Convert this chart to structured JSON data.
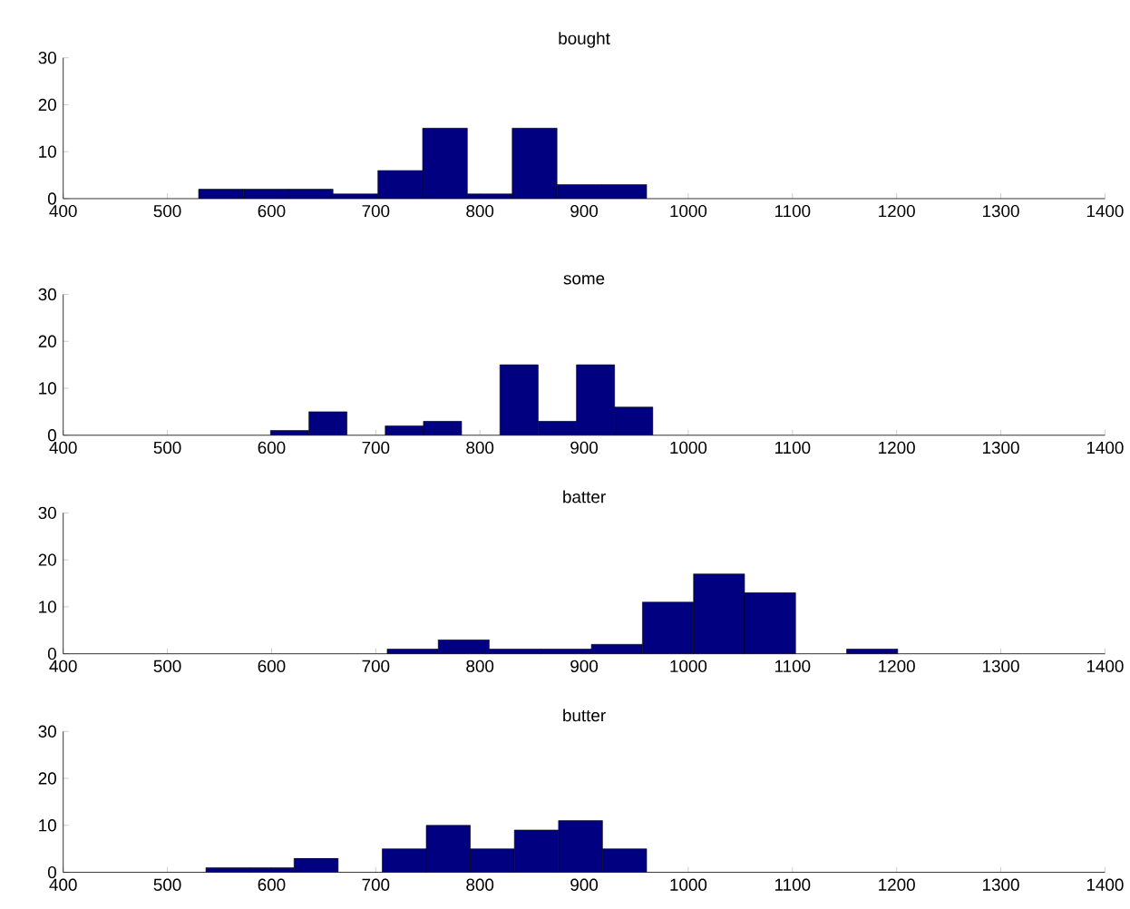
{
  "chart_data": [
    {
      "type": "histogram",
      "title": "bought",
      "bins": [
        530,
        573,
        616,
        659,
        702,
        745,
        788,
        831,
        874,
        917,
        960
      ],
      "values": [
        2,
        2,
        2,
        1,
        6,
        15,
        1,
        15,
        3,
        3
      ],
      "color": "#000080",
      "xlim": [
        400,
        1400
      ],
      "ylim": [
        0,
        30
      ],
      "xticks": [
        400,
        500,
        600,
        700,
        800,
        900,
        1000,
        1100,
        1200,
        1300,
        1400
      ],
      "yticks": [
        0,
        10,
        20,
        30
      ],
      "grid": false
    },
    {
      "type": "histogram",
      "title": "some",
      "bins": [
        599,
        635.7,
        672.4,
        709.1,
        745.8,
        782.5,
        819.2,
        855.9,
        892.6,
        929.3,
        966
      ],
      "values": [
        1,
        5,
        0,
        2,
        3,
        0,
        15,
        3,
        15,
        6
      ],
      "color": "#000080",
      "xlim": [
        400,
        1400
      ],
      "ylim": [
        0,
        30
      ],
      "xticks": [
        400,
        500,
        600,
        700,
        800,
        900,
        1000,
        1100,
        1200,
        1300,
        1400
      ],
      "yticks": [
        0,
        10,
        20,
        30
      ],
      "grid": false
    },
    {
      "type": "histogram",
      "title": "batter",
      "bins": [
        711,
        760,
        809,
        858,
        907,
        956,
        1005,
        1054,
        1103,
        1152,
        1201
      ],
      "values": [
        1,
        3,
        1,
        1,
        2,
        11,
        17,
        13,
        0,
        1
      ],
      "color": "#000080",
      "xlim": [
        400,
        1400
      ],
      "ylim": [
        0,
        30
      ],
      "xticks": [
        400,
        500,
        600,
        700,
        800,
        900,
        1000,
        1100,
        1200,
        1300,
        1400
      ],
      "yticks": [
        0,
        10,
        20,
        30
      ],
      "grid": false
    },
    {
      "type": "histogram",
      "title": "butter",
      "bins": [
        537,
        579.3,
        621.6,
        663.9,
        706.2,
        748.5,
        790.8,
        833.1,
        875.4,
        917.7,
        960
      ],
      "values": [
        1,
        1,
        3,
        0,
        5,
        10,
        5,
        9,
        11,
        5
      ],
      "color": "#000080",
      "xlim": [
        400,
        1400
      ],
      "ylim": [
        0,
        30
      ],
      "xticks": [
        400,
        500,
        600,
        700,
        800,
        900,
        1000,
        1100,
        1200,
        1300,
        1400
      ],
      "yticks": [
        0,
        10,
        20,
        30
      ],
      "grid": false
    }
  ]
}
